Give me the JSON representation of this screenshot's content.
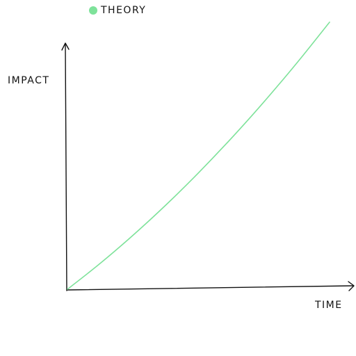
{
  "chart_data": {
    "type": "line",
    "title": "",
    "xlabel": "TIME",
    "ylabel": "IMPACT",
    "grid": false,
    "legend_placement": "top",
    "x_ticks": [],
    "y_ticks": [],
    "series": [
      {
        "name": "THEORY",
        "color": "#7ee29a",
        "x": [
          0,
          0.1,
          0.2,
          0.3,
          0.4,
          0.5,
          0.6,
          0.7,
          0.8,
          0.9,
          1.0
        ],
        "y": [
          0,
          0.075,
          0.155,
          0.24,
          0.33,
          0.425,
          0.525,
          0.63,
          0.74,
          0.855,
          0.975
        ]
      }
    ],
    "xlim": [
      0,
      1
    ],
    "ylim": [
      0,
      1
    ]
  }
}
